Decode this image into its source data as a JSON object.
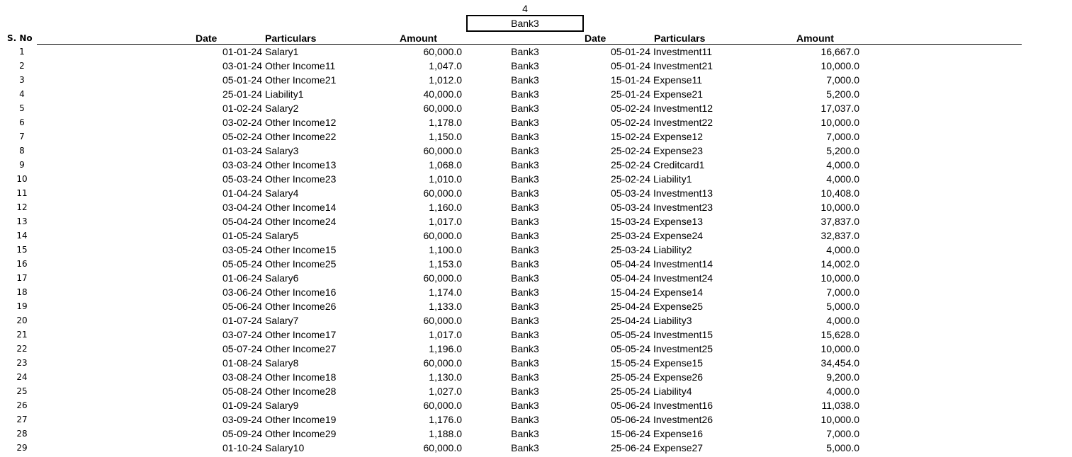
{
  "page_number": "4",
  "bank_label": "Bank3",
  "headers": {
    "sno": "S. No",
    "date_left": "Date",
    "particulars_left": "Particulars",
    "amount_left": "Amount",
    "date_right": "Date",
    "particulars_right": "Particulars",
    "amount_right": "Amount"
  },
  "rows": [
    {
      "sno": "1",
      "date1": "01-01-24",
      "part1": "Salary1",
      "amt1": "60,000.0",
      "bank": "Bank3",
      "date2": "05-01-24",
      "part2": "Investment11",
      "amt2": "16,667.0"
    },
    {
      "sno": "2",
      "date1": "03-01-24",
      "part1": "Other Income11",
      "amt1": "1,047.0",
      "bank": "Bank3",
      "date2": "05-01-24",
      "part2": "Investment21",
      "amt2": "10,000.0"
    },
    {
      "sno": "3",
      "date1": "05-01-24",
      "part1": "Other Income21",
      "amt1": "1,012.0",
      "bank": "Bank3",
      "date2": "15-01-24",
      "part2": "Expense11",
      "amt2": "7,000.0"
    },
    {
      "sno": "4",
      "date1": "25-01-24",
      "part1": "Liability1",
      "amt1": "40,000.0",
      "bank": "Bank3",
      "date2": "25-01-24",
      "part2": "Expense21",
      "amt2": "5,200.0"
    },
    {
      "sno": "5",
      "date1": "01-02-24",
      "part1": "Salary2",
      "amt1": "60,000.0",
      "bank": "Bank3",
      "date2": "05-02-24",
      "part2": "Investment12",
      "amt2": "17,037.0"
    },
    {
      "sno": "6",
      "date1": "03-02-24",
      "part1": "Other Income12",
      "amt1": "1,178.0",
      "bank": "Bank3",
      "date2": "05-02-24",
      "part2": "Investment22",
      "amt2": "10,000.0"
    },
    {
      "sno": "7",
      "date1": "05-02-24",
      "part1": "Other Income22",
      "amt1": "1,150.0",
      "bank": "Bank3",
      "date2": "15-02-24",
      "part2": "Expense12",
      "amt2": "7,000.0"
    },
    {
      "sno": "8",
      "date1": "01-03-24",
      "part1": "Salary3",
      "amt1": "60,000.0",
      "bank": "Bank3",
      "date2": "25-02-24",
      "part2": "Expense23",
      "amt2": "5,200.0"
    },
    {
      "sno": "9",
      "date1": "03-03-24",
      "part1": "Other Income13",
      "amt1": "1,068.0",
      "bank": "Bank3",
      "date2": "25-02-24",
      "part2": "Creditcard1",
      "amt2": "4,000.0"
    },
    {
      "sno": "10",
      "date1": "05-03-24",
      "part1": "Other Income23",
      "amt1": "1,010.0",
      "bank": "Bank3",
      "date2": "25-02-24",
      "part2": "Liability1",
      "amt2": "4,000.0"
    },
    {
      "sno": "11",
      "date1": "01-04-24",
      "part1": "Salary4",
      "amt1": "60,000.0",
      "bank": "Bank3",
      "date2": "05-03-24",
      "part2": "Investment13",
      "amt2": "10,408.0"
    },
    {
      "sno": "12",
      "date1": "03-04-24",
      "part1": "Other Income14",
      "amt1": "1,160.0",
      "bank": "Bank3",
      "date2": "05-03-24",
      "part2": "Investment23",
      "amt2": "10,000.0"
    },
    {
      "sno": "13",
      "date1": "05-04-24",
      "part1": "Other Income24",
      "amt1": "1,017.0",
      "bank": "Bank3",
      "date2": "15-03-24",
      "part2": "Expense13",
      "amt2": "37,837.0"
    },
    {
      "sno": "14",
      "date1": "01-05-24",
      "part1": "Salary5",
      "amt1": "60,000.0",
      "bank": "Bank3",
      "date2": "25-03-24",
      "part2": "Expense24",
      "amt2": "32,837.0"
    },
    {
      "sno": "15",
      "date1": "03-05-24",
      "part1": "Other Income15",
      "amt1": "1,100.0",
      "bank": "Bank3",
      "date2": "25-03-24",
      "part2": "Liability2",
      "amt2": "4,000.0"
    },
    {
      "sno": "16",
      "date1": "05-05-24",
      "part1": "Other Income25",
      "amt1": "1,153.0",
      "bank": "Bank3",
      "date2": "05-04-24",
      "part2": "Investment14",
      "amt2": "14,002.0"
    },
    {
      "sno": "17",
      "date1": "01-06-24",
      "part1": "Salary6",
      "amt1": "60,000.0",
      "bank": "Bank3",
      "date2": "05-04-24",
      "part2": "Investment24",
      "amt2": "10,000.0"
    },
    {
      "sno": "18",
      "date1": "03-06-24",
      "part1": "Other Income16",
      "amt1": "1,174.0",
      "bank": "Bank3",
      "date2": "15-04-24",
      "part2": "Expense14",
      "amt2": "7,000.0"
    },
    {
      "sno": "19",
      "date1": "05-06-24",
      "part1": "Other Income26",
      "amt1": "1,133.0",
      "bank": "Bank3",
      "date2": "25-04-24",
      "part2": "Expense25",
      "amt2": "5,000.0"
    },
    {
      "sno": "20",
      "date1": "01-07-24",
      "part1": "Salary7",
      "amt1": "60,000.0",
      "bank": "Bank3",
      "date2": "25-04-24",
      "part2": "Liability3",
      "amt2": "4,000.0"
    },
    {
      "sno": "21",
      "date1": "03-07-24",
      "part1": "Other Income17",
      "amt1": "1,017.0",
      "bank": "Bank3",
      "date2": "05-05-24",
      "part2": "Investment15",
      "amt2": "15,628.0"
    },
    {
      "sno": "22",
      "date1": "05-07-24",
      "part1": "Other Income27",
      "amt1": "1,196.0",
      "bank": "Bank3",
      "date2": "05-05-24",
      "part2": "Investment25",
      "amt2": "10,000.0"
    },
    {
      "sno": "23",
      "date1": "01-08-24",
      "part1": "Salary8",
      "amt1": "60,000.0",
      "bank": "Bank3",
      "date2": "15-05-24",
      "part2": "Expense15",
      "amt2": "34,454.0"
    },
    {
      "sno": "24",
      "date1": "03-08-24",
      "part1": "Other Income18",
      "amt1": "1,130.0",
      "bank": "Bank3",
      "date2": "25-05-24",
      "part2": "Expense26",
      "amt2": "9,200.0"
    },
    {
      "sno": "25",
      "date1": "05-08-24",
      "part1": "Other Income28",
      "amt1": "1,027.0",
      "bank": "Bank3",
      "date2": "25-05-24",
      "part2": "Liability4",
      "amt2": "4,000.0"
    },
    {
      "sno": "26",
      "date1": "01-09-24",
      "part1": "Salary9",
      "amt1": "60,000.0",
      "bank": "Bank3",
      "date2": "05-06-24",
      "part2": "Investment16",
      "amt2": "11,038.0"
    },
    {
      "sno": "27",
      "date1": "03-09-24",
      "part1": "Other Income19",
      "amt1": "1,176.0",
      "bank": "Bank3",
      "date2": "05-06-24",
      "part2": "Investment26",
      "amt2": "10,000.0"
    },
    {
      "sno": "28",
      "date1": "05-09-24",
      "part1": "Other Income29",
      "amt1": "1,188.0",
      "bank": "Bank3",
      "date2": "15-06-24",
      "part2": "Expense16",
      "amt2": "7,000.0"
    },
    {
      "sno": "29",
      "date1": "01-10-24",
      "part1": "Salary10",
      "amt1": "60,000.0",
      "bank": "Bank3",
      "date2": "25-06-24",
      "part2": "Expense27",
      "amt2": "5,000.0"
    }
  ]
}
